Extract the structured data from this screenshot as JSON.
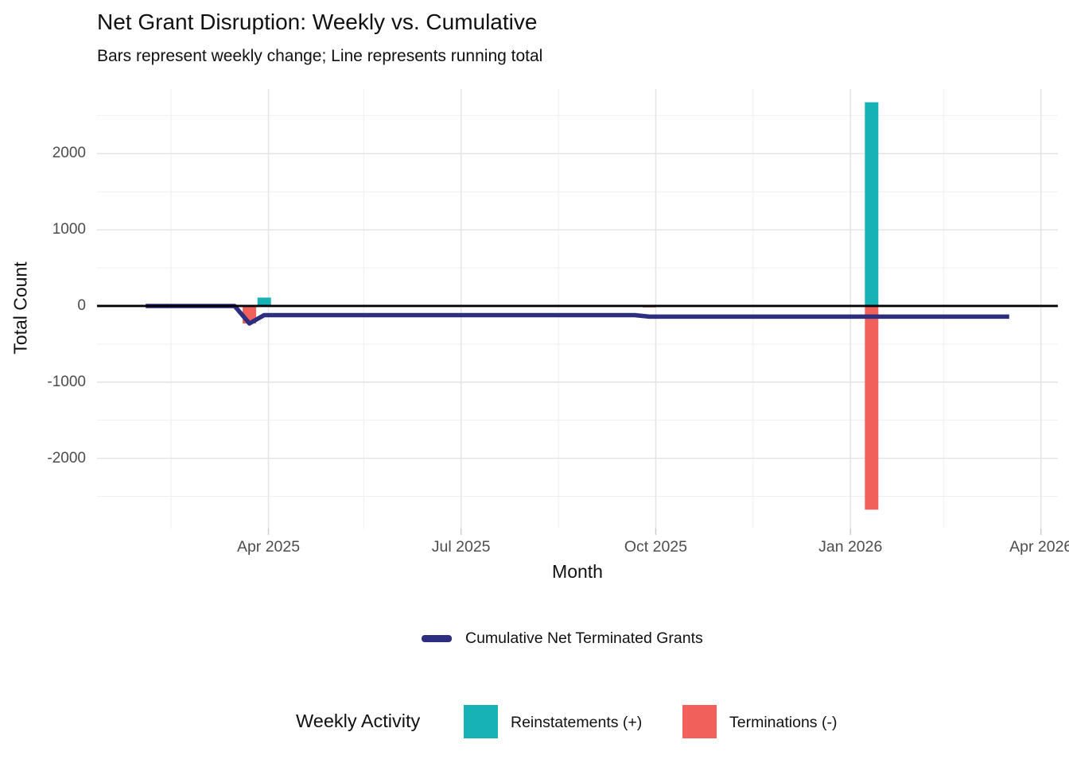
{
  "chart_data": {
    "type": "bar+line",
    "title": "Net Grant Disruption: Weekly vs. Cumulative",
    "subtitle": "Bars represent weekly change; Line represents running total",
    "xlabel": "Month",
    "ylabel": "Total Count",
    "xlim": [
      "2025-01-10",
      "2026-04-09"
    ],
    "ylim": [
      -2923,
      2849
    ],
    "grid": true,
    "x_ticks": [
      {
        "date": "2025-04-01",
        "label": "Apr 2025"
      },
      {
        "date": "2025-07-01",
        "label": "Jul 2025"
      },
      {
        "date": "2025-10-01",
        "label": "Oct 2025"
      },
      {
        "date": "2026-01-01",
        "label": "Jan 2026"
      },
      {
        "date": "2026-04-01",
        "label": "Apr 2026"
      }
    ],
    "x_minor_gridlines": [
      "2025-02-14",
      "2025-05-16",
      "2025-08-16",
      "2025-11-16",
      "2026-02-14"
    ],
    "y_ticks": [
      {
        "value": 2000,
        "label": "2000"
      },
      {
        "value": 1000,
        "label": "1000"
      },
      {
        "value": 0,
        "label": "0"
      },
      {
        "value": -1000,
        "label": "-1000"
      },
      {
        "value": -2000,
        "label": "-2000"
      }
    ],
    "y_minor_gridlines": [
      2500,
      1500,
      500,
      -500,
      -1500,
      -2500
    ],
    "zero_line_value": 0,
    "bar_series": [
      {
        "name": "Reinstatements (+)",
        "color": "#17B2B6",
        "points": [
          {
            "week": "2025-03-30",
            "value": 110
          },
          {
            "week": "2026-01-11",
            "value": 2675
          }
        ]
      },
      {
        "name": "Terminations (-)",
        "color": "#F2605C",
        "points": [
          {
            "week": "2025-03-23",
            "value": -230
          },
          {
            "week": "2025-09-28",
            "value": -20
          },
          {
            "week": "2026-01-11",
            "value": -2675
          }
        ]
      }
    ],
    "line_series": {
      "name": "Cumulative Net Terminated Grants",
      "color": "#2D2E7F",
      "points": [
        [
          "2025-02-02",
          0
        ],
        [
          "2025-03-16",
          0
        ],
        [
          "2025-03-23",
          -230
        ],
        [
          "2025-03-30",
          -120
        ],
        [
          "2025-09-21",
          -120
        ],
        [
          "2025-09-28",
          -140
        ],
        [
          "2026-03-17",
          -140
        ]
      ]
    },
    "colors": {
      "zero_line": "#000000",
      "grid_major": "#E3E3E3",
      "grid_minor": "#EFEFEF",
      "tick_mark": "#C9C9C9",
      "tick_text": "#4D4D4D",
      "text": "#111111"
    },
    "legends": {
      "line_legend": {
        "label": "Cumulative Net Terminated Grants"
      },
      "bar_legend": {
        "title": "Weekly Activity",
        "items": [
          {
            "label": "Reinstatements (+)",
            "color": "#17B2B6"
          },
          {
            "label": "Terminations (-)",
            "color": "#F2605C"
          }
        ]
      }
    }
  }
}
